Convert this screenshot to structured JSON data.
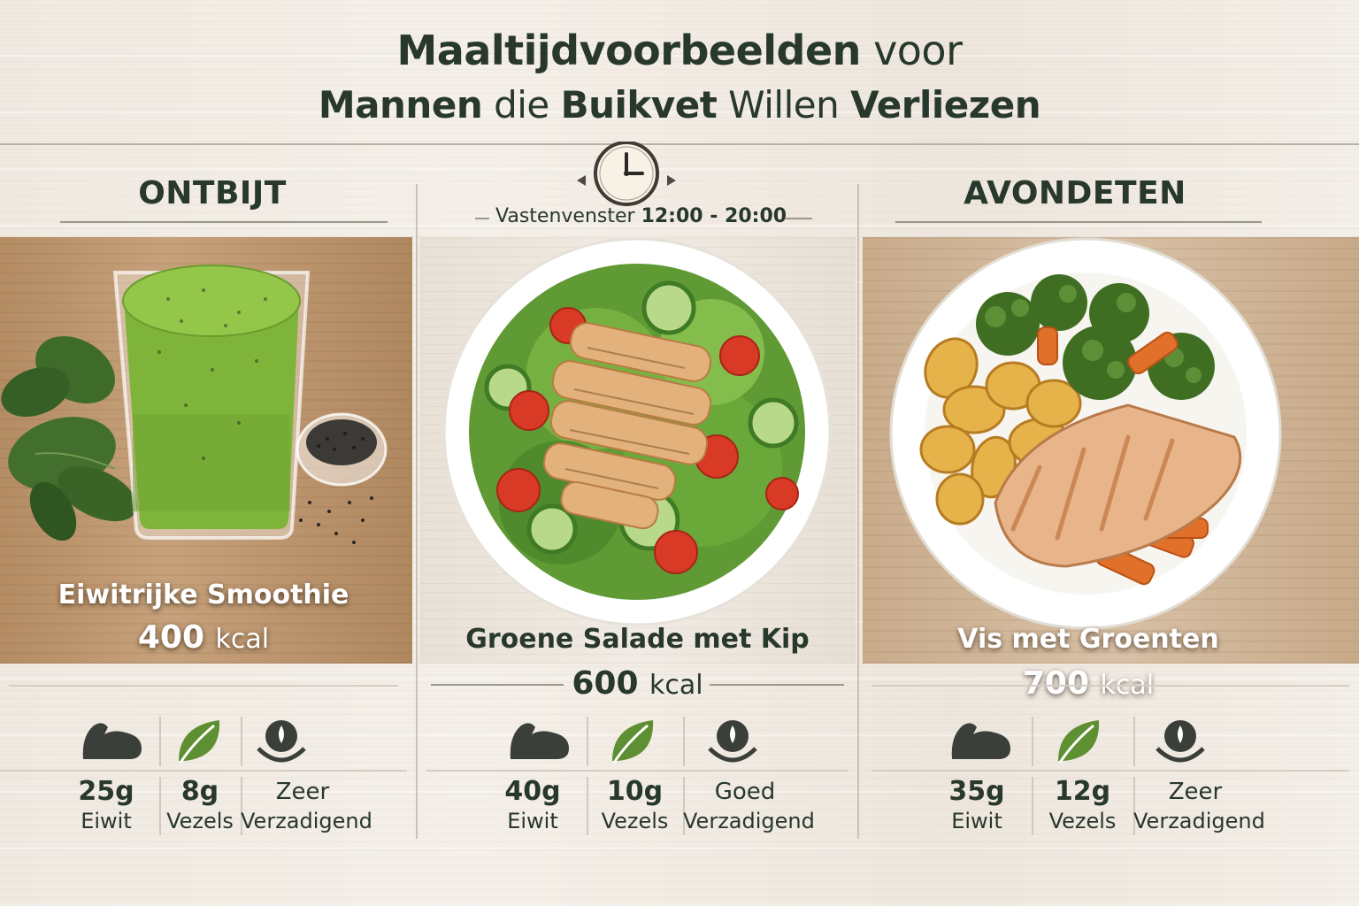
{
  "title": {
    "line1_bold": "Maaltijdvoorbeelden",
    "line1_light": "voor",
    "line2_parts": [
      {
        "text": "Mannen",
        "bold": true
      },
      {
        "text": "die",
        "bold": false
      },
      {
        "text": "Buikvet",
        "bold": true
      },
      {
        "text": "Willen",
        "bold": false
      },
      {
        "text": "Verliezen",
        "bold": true
      }
    ]
  },
  "window": {
    "label": "Vastenvenster",
    "time": "12:00 - 20:00",
    "icon": "clock-icon"
  },
  "meals": [
    {
      "section": "ONTBIJT",
      "dish": "Eiwitrijke Smoothie",
      "kcal": "400",
      "kcal_unit": "kcal",
      "stats": [
        {
          "icon": "muscle-icon",
          "value": "25g",
          "label": "Eiwit"
        },
        {
          "icon": "leaf-icon",
          "value": "8g",
          "label": "Vezels"
        },
        {
          "icon": "satiety-icon",
          "value": "Zeer",
          "label": "Verzadigend"
        }
      ]
    },
    {
      "section": "",
      "dish": "Groene Salade met Kip",
      "kcal": "600",
      "kcal_unit": "kcal",
      "stats": [
        {
          "icon": "muscle-icon",
          "value": "40g",
          "label": "Eiwit"
        },
        {
          "icon": "leaf-icon",
          "value": "10g",
          "label": "Vezels"
        },
        {
          "icon": "satiety-icon",
          "value": "Goed",
          "label": "Verzadigend"
        }
      ]
    },
    {
      "section": "AVONDETEN",
      "dish": "Vis met Groenten",
      "kcal": "700",
      "kcal_unit": "kcal",
      "stats": [
        {
          "icon": "muscle-icon",
          "value": "35g",
          "label": "Eiwit"
        },
        {
          "icon": "leaf-icon",
          "value": "12g",
          "label": "Vezels"
        },
        {
          "icon": "satiety-icon",
          "value": "Zeer",
          "label": "Verzadigend"
        }
      ]
    }
  ],
  "colors": {
    "text": "#28382c",
    "smoothie": "#7fb43a",
    "leaf": "#5f8f33",
    "tomato": "#d93a25",
    "carrot": "#e0702a",
    "broccoli": "#3f6e22",
    "plate": "#ffffff"
  }
}
